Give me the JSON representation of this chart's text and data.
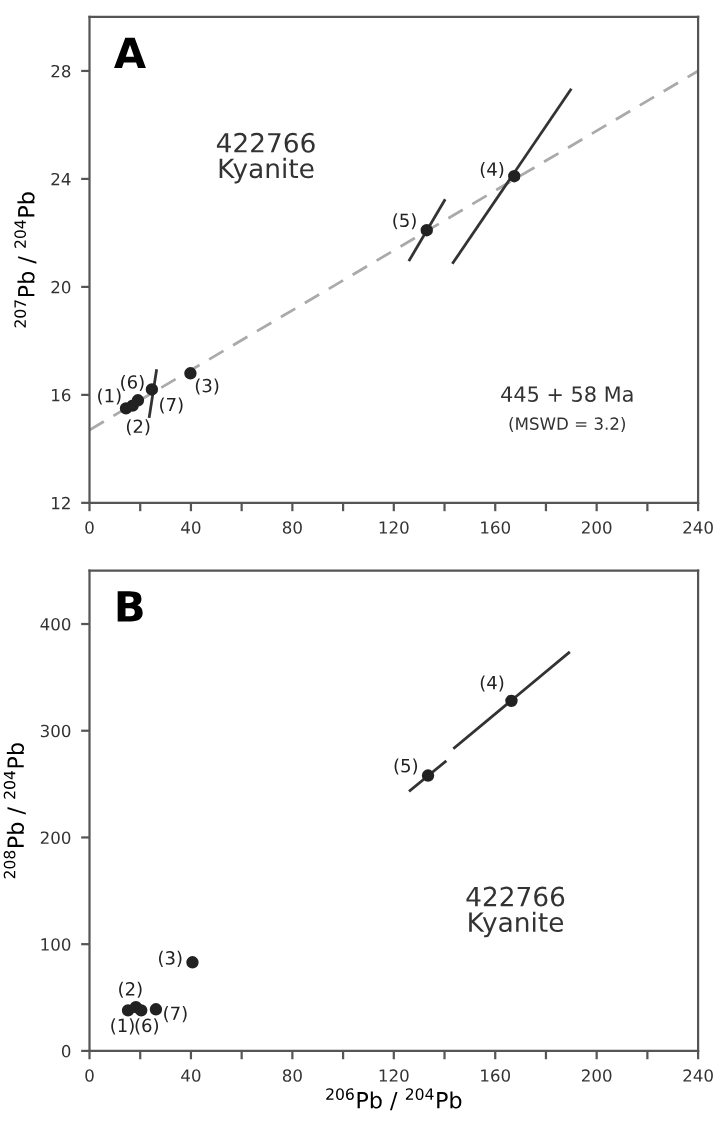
{
  "chart_data": [
    {
      "type": "scatter",
      "title": "A",
      "ylabel": "$^{207}$Pb / $^{204}$Pb",
      "xlim": [
        0,
        240
      ],
      "ylim": [
        12,
        30
      ],
      "xticks": [
        0,
        {
          "value": 20,
          "label": null
        },
        40,
        {
          "value": 60,
          "label": null
        },
        80,
        {
          "value": 100,
          "label": null
        },
        120,
        {
          "value": 140,
          "label": null
        },
        160,
        {
          "value": 180,
          "label": null
        },
        200,
        {
          "value": 220,
          "label": null
        },
        240
      ],
      "yticks": [
        12,
        16,
        20,
        24,
        28
      ],
      "grid": false,
      "legend": false,
      "series": [
        {
          "type": "line",
          "color": "#aaaaaa",
          "line_style": "dashed",
          "marker": "none",
          "x": [
            0,
            240
          ],
          "values": [
            14.7,
            28.0
          ]
        },
        {
          "type": "line",
          "color": "#333333",
          "line_style": "solid",
          "marker": "none",
          "x": [
            143.4,
            189.7
          ],
          "values": [
            20.9,
            27.3
          ]
        },
        {
          "type": "line",
          "color": "#333333",
          "line_style": "solid",
          "marker": "none",
          "x": [
            126.2,
            140.0
          ],
          "values": [
            21.0,
            23.2
          ]
        },
        {
          "type": "line",
          "color": "#333333",
          "line_style": "solid",
          "marker": "none",
          "x": [
            23.6,
            26.4
          ],
          "values": [
            15.2,
            16.9
          ]
        },
        {
          "color": "#222222",
          "marker": "circle",
          "x": [
            14.4,
            17.0,
            19.1,
            24.6,
            39.8,
            133,
            167.5
          ],
          "values": [
            15.5,
            15.6,
            15.8,
            16.2,
            16.8,
            22.1,
            24.1
          ]
        }
      ],
      "annotations": [
        {
          "text": "(1)",
          "x": 14.4,
          "y": 15.5
        },
        {
          "text": "(6)",
          "x": 19.1,
          "y": 15.8
        },
        {
          "text": "(2)",
          "x": 17.0,
          "y": 15.6
        },
        {
          "text": "(7)",
          "x": 24.6,
          "y": 16.2
        },
        {
          "text": "(3)",
          "x": 39.8,
          "y": 16.8
        },
        {
          "text": "(5)",
          "x": 133,
          "y": 22.1
        },
        {
          "text": "(4)",
          "x": 167.5,
          "y": 24.1
        },
        "422766\nKyanite",
        "445 + 58 Ma",
        "(MSWD = 3.2)"
      ]
    },
    {
      "type": "scatter",
      "title": "B",
      "xlabel": "$^{206}$Pb / $^{204}$Pb",
      "ylabel": "$^{208}$Pb / $^{204}$Pb",
      "xlim": [
        0,
        240
      ],
      "ylim": [
        0,
        450
      ],
      "xticks": [
        0,
        {
          "value": 20,
          "label": null
        },
        40,
        {
          "value": 60,
          "label": null
        },
        80,
        {
          "value": 100,
          "label": null
        },
        120,
        {
          "value": 140,
          "label": null
        },
        160,
        {
          "value": 180,
          "label": null
        },
        200,
        {
          "value": 220,
          "label": null
        },
        240
      ],
      "yticks": [
        0,
        100,
        200,
        300,
        400
      ],
      "grid": false,
      "legend": false,
      "series": [
        {
          "type": "line",
          "color": "#333333",
          "line_style": "solid",
          "marker": "none",
          "x": [
            143.9,
            189.0
          ],
          "values": [
            284,
            373
          ]
        },
        {
          "type": "line",
          "color": "#333333",
          "line_style": "solid",
          "marker": "none",
          "x": [
            126.4,
            140.3
          ],
          "values": [
            244,
            271
          ]
        },
        {
          "color": "#222222",
          "marker": "circle",
          "x": [
            15.2,
            18.3,
            20.4,
            26.2,
            40.6,
            133.5,
            166.4
          ],
          "values": [
            38,
            41,
            38,
            39,
            83,
            258,
            328
          ]
        }
      ],
      "annotations": [
        {
          "text": "(1)",
          "x": 15.2,
          "y": 38
        },
        {
          "text": "(6)",
          "x": 20.4,
          "y": 38
        },
        {
          "text": "(2)",
          "x": 18.3,
          "y": 41
        },
        {
          "text": "(7)",
          "x": 26.2,
          "y": 39
        },
        {
          "text": "(3)",
          "x": 40.6,
          "y": 83
        },
        {
          "text": "(5)",
          "x": 133.5,
          "y": 258
        },
        {
          "text": "(4)",
          "x": 166.4,
          "y": 328
        },
        "422766\nKyanite"
      ]
    }
  ]
}
